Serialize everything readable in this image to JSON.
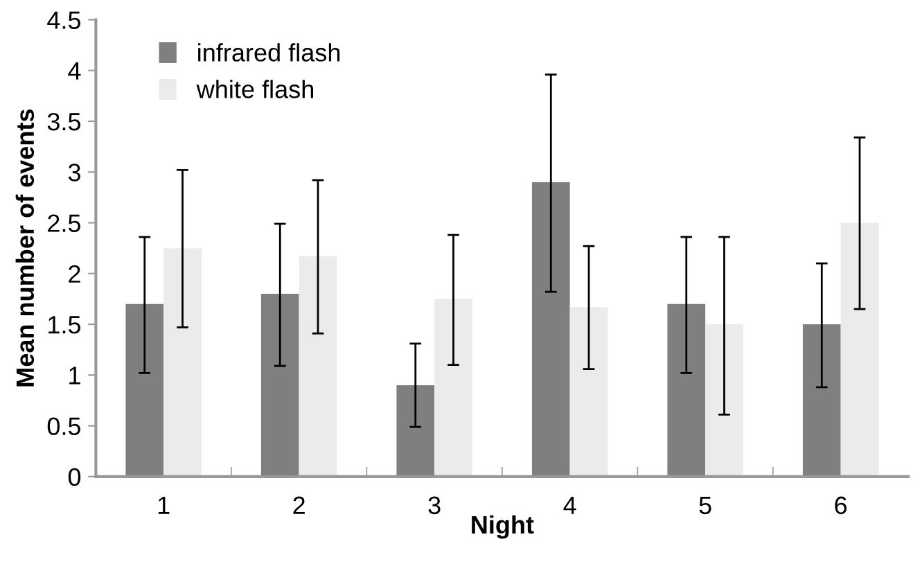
{
  "chart_data": {
    "type": "bar",
    "xlabel": "Night",
    "ylabel": "Mean number of events",
    "categories": [
      "1",
      "2",
      "3",
      "4",
      "5",
      "6"
    ],
    "series": [
      {
        "name": "infrared flash",
        "color": "#7f7f7f",
        "values": [
          1.7,
          1.8,
          0.9,
          2.9,
          1.7,
          1.5
        ],
        "errors": [
          [
            1.02,
            2.36
          ],
          [
            1.09,
            2.49
          ],
          [
            0.49,
            1.31
          ],
          [
            1.82,
            3.96
          ],
          [
            1.02,
            2.36
          ],
          [
            0.88,
            2.1
          ]
        ]
      },
      {
        "name": "white flash",
        "color": "#ebebeb",
        "values": [
          2.25,
          2.17,
          1.75,
          1.67,
          1.5,
          2.5
        ],
        "errors": [
          [
            1.47,
            3.02
          ],
          [
            1.41,
            2.92
          ],
          [
            1.1,
            2.38
          ],
          [
            1.06,
            2.27
          ],
          [
            0.61,
            2.36
          ],
          [
            1.65,
            3.34
          ]
        ]
      }
    ],
    "ylim": [
      0,
      4.5
    ],
    "yticks": [
      0,
      0.5,
      1,
      1.5,
      2,
      2.5,
      3,
      3.5,
      4,
      4.5
    ],
    "grid": false,
    "legend": "top left"
  }
}
